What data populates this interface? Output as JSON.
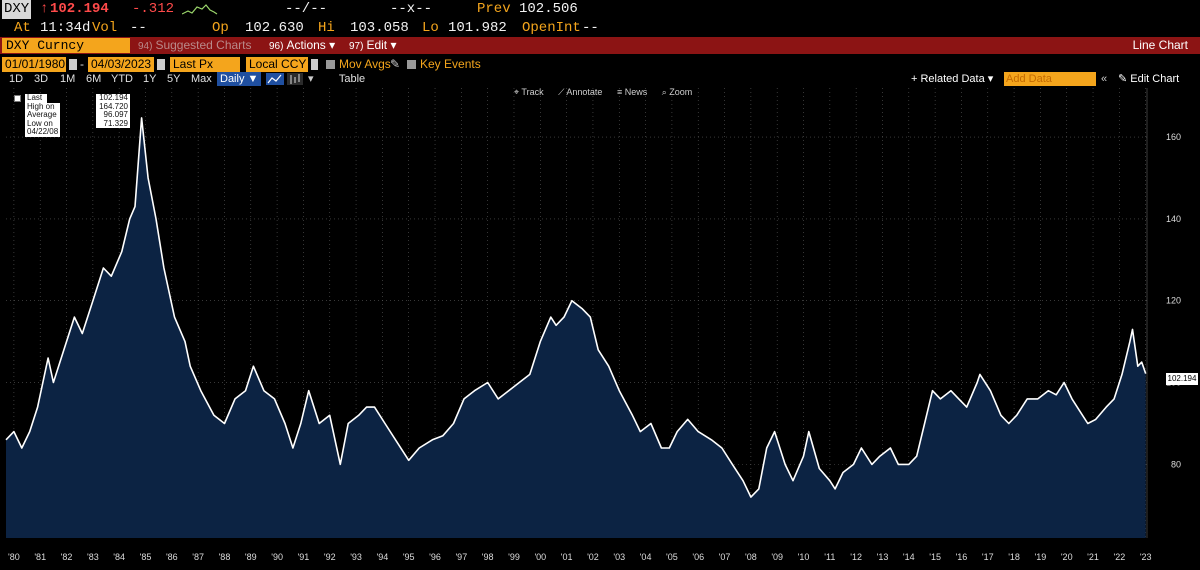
{
  "header": {
    "ticker": "DXY",
    "arrow": "↑",
    "last_price": "102.194",
    "change": "-.312",
    "at_label": "At",
    "time": "11:34d",
    "vol_label": "Vol",
    "vol_value": "--",
    "blank1": "--/--",
    "blank2": "--x--",
    "prev_label": "Prev",
    "prev_value": "102.506",
    "open_label": "Op",
    "open_value": "102.630",
    "high_label": "Hi",
    "high_value": "103.058",
    "low_label": "Lo",
    "low_value": "101.982",
    "openint_label": "OpenInt",
    "openint_value": "--"
  },
  "toolbar": {
    "security": "DXY Curncy",
    "suggested": "Suggested Charts",
    "suggested_num": "94)",
    "actions": "Actions",
    "actions_num": "96)",
    "edit": "Edit",
    "edit_num": "97)",
    "caret": "▾",
    "view_title": "Line Chart"
  },
  "controls": {
    "start_date": "01/01/1980",
    "end_date": "04/03/2023",
    "dash": "-",
    "field": "Last Px",
    "currency": "Local CCY",
    "mov_avgs": "Mov Avgs",
    "key_events": "Key Events"
  },
  "periods": {
    "items": [
      "1D",
      "3D",
      "1M",
      "6M",
      "YTD",
      "1Y",
      "5Y",
      "Max"
    ],
    "frequency": "Daily ▼",
    "table": "Table",
    "related": "+ Related Data ▾",
    "add_data_placeholder": "Add Data",
    "collapse": "«",
    "edit_chart": "✎ Edit Chart",
    "settings": "▾"
  },
  "chart_tools": [
    "⌖ Track",
    "⟋ Annotate",
    "≡ News",
    "⌕ Zoom"
  ],
  "legend": [
    {
      "name": "Last Price",
      "value": "102.194"
    },
    {
      "name": "High on 02/25/85",
      "value": "164.720"
    },
    {
      "name": "Average",
      "value": "96.097"
    },
    {
      "name": "Low on 04/22/08",
      "value": "71.329"
    }
  ],
  "colors": {
    "amber": "#f4a51c",
    "red_bar": "#8c1414",
    "area_fill": "#0c2343",
    "line": "#ffffff"
  },
  "chart_data": {
    "type": "area",
    "title": "",
    "xlabel": "",
    "ylabel": "",
    "ylim": [
      62,
      172
    ],
    "xlim": [
      1980.0,
      2023.35
    ],
    "yticks": [
      80,
      100,
      120,
      140,
      160
    ],
    "xtick_labels": [
      "'80",
      "'81",
      "'82",
      "'83",
      "'84",
      "'85",
      "'86",
      "'87",
      "'88",
      "'89",
      "'90",
      "'91",
      "'92",
      "'93",
      "'94",
      "'95",
      "'96",
      "'97",
      "'98",
      "'99",
      "'00",
      "'01",
      "'02",
      "'03",
      "'04",
      "'05",
      "'06",
      "'07",
      "'08",
      "'09",
      "'10",
      "'11",
      "'12",
      "'13",
      "'14",
      "'15",
      "'16",
      "'17",
      "'18",
      "'19",
      "'20",
      "'21",
      "'22",
      "'23"
    ],
    "grid": true,
    "last_value_label": "102.194",
    "series": [
      {
        "name": "DXY Curncy",
        "points": [
          [
            1980.0,
            86
          ],
          [
            1980.3,
            88
          ],
          [
            1980.6,
            84
          ],
          [
            1980.9,
            88
          ],
          [
            1981.2,
            94
          ],
          [
            1981.6,
            106
          ],
          [
            1981.8,
            100
          ],
          [
            1982.2,
            108
          ],
          [
            1982.6,
            116
          ],
          [
            1982.9,
            112
          ],
          [
            1983.3,
            120
          ],
          [
            1983.7,
            128
          ],
          [
            1984.0,
            126
          ],
          [
            1984.4,
            132
          ],
          [
            1984.7,
            140
          ],
          [
            1984.9,
            143
          ],
          [
            1985.15,
            164.7
          ],
          [
            1985.4,
            150
          ],
          [
            1985.7,
            140
          ],
          [
            1986.0,
            128
          ],
          [
            1986.4,
            116
          ],
          [
            1986.8,
            110
          ],
          [
            1987.0,
            104
          ],
          [
            1987.4,
            98
          ],
          [
            1987.9,
            92
          ],
          [
            1988.3,
            90
          ],
          [
            1988.7,
            96
          ],
          [
            1989.1,
            98
          ],
          [
            1989.4,
            104
          ],
          [
            1989.8,
            98
          ],
          [
            1990.2,
            96
          ],
          [
            1990.6,
            90
          ],
          [
            1990.9,
            84
          ],
          [
            1991.2,
            90
          ],
          [
            1991.5,
            98
          ],
          [
            1991.9,
            90
          ],
          [
            1992.3,
            92
          ],
          [
            1992.7,
            80
          ],
          [
            1993.0,
            90
          ],
          [
            1993.4,
            92
          ],
          [
            1993.7,
            94
          ],
          [
            1994.0,
            94
          ],
          [
            1994.4,
            90
          ],
          [
            1994.8,
            86
          ],
          [
            1995.3,
            81
          ],
          [
            1995.7,
            84
          ],
          [
            1996.2,
            86
          ],
          [
            1996.6,
            87
          ],
          [
            1997.0,
            90
          ],
          [
            1997.4,
            96
          ],
          [
            1997.8,
            98
          ],
          [
            1998.3,
            100
          ],
          [
            1998.7,
            96
          ],
          [
            1999.1,
            98
          ],
          [
            1999.5,
            100
          ],
          [
            1999.9,
            102
          ],
          [
            2000.3,
            110
          ],
          [
            2000.7,
            116
          ],
          [
            2000.9,
            114
          ],
          [
            2001.2,
            116
          ],
          [
            2001.5,
            120
          ],
          [
            2001.9,
            118
          ],
          [
            2002.2,
            116
          ],
          [
            2002.5,
            108
          ],
          [
            2002.9,
            104
          ],
          [
            2003.3,
            98
          ],
          [
            2003.8,
            92
          ],
          [
            2004.1,
            88
          ],
          [
            2004.5,
            90
          ],
          [
            2004.9,
            84
          ],
          [
            2005.2,
            84
          ],
          [
            2005.5,
            88
          ],
          [
            2005.9,
            91
          ],
          [
            2006.3,
            88
          ],
          [
            2006.8,
            86
          ],
          [
            2007.2,
            84
          ],
          [
            2007.6,
            80
          ],
          [
            2008.0,
            76
          ],
          [
            2008.3,
            72
          ],
          [
            2008.6,
            74
          ],
          [
            2008.9,
            84
          ],
          [
            2009.2,
            88
          ],
          [
            2009.6,
            80
          ],
          [
            2009.9,
            76
          ],
          [
            2010.3,
            82
          ],
          [
            2010.5,
            88
          ],
          [
            2010.9,
            79
          ],
          [
            2011.3,
            76
          ],
          [
            2011.5,
            74
          ],
          [
            2011.8,
            78
          ],
          [
            2012.2,
            80
          ],
          [
            2012.5,
            84
          ],
          [
            2012.9,
            80
          ],
          [
            2013.2,
            82
          ],
          [
            2013.6,
            84
          ],
          [
            2013.9,
            80
          ],
          [
            2014.3,
            80
          ],
          [
            2014.6,
            82
          ],
          [
            2014.9,
            90
          ],
          [
            2015.2,
            98
          ],
          [
            2015.5,
            96
          ],
          [
            2015.9,
            98
          ],
          [
            2016.2,
            96
          ],
          [
            2016.5,
            94
          ],
          [
            2016.9,
            100
          ],
          [
            2017.0,
            102
          ],
          [
            2017.4,
            98
          ],
          [
            2017.8,
            92
          ],
          [
            2018.1,
            90
          ],
          [
            2018.4,
            92
          ],
          [
            2018.8,
            96
          ],
          [
            2019.2,
            96
          ],
          [
            2019.6,
            98
          ],
          [
            2019.9,
            97
          ],
          [
            2020.2,
            100
          ],
          [
            2020.5,
            96
          ],
          [
            2020.9,
            92
          ],
          [
            2021.1,
            90
          ],
          [
            2021.4,
            91
          ],
          [
            2021.8,
            94
          ],
          [
            2022.1,
            96
          ],
          [
            2022.4,
            102
          ],
          [
            2022.7,
            110
          ],
          [
            2022.8,
            113
          ],
          [
            2023.0,
            104
          ],
          [
            2023.15,
            105
          ],
          [
            2023.3,
            102.194
          ]
        ]
      }
    ]
  }
}
